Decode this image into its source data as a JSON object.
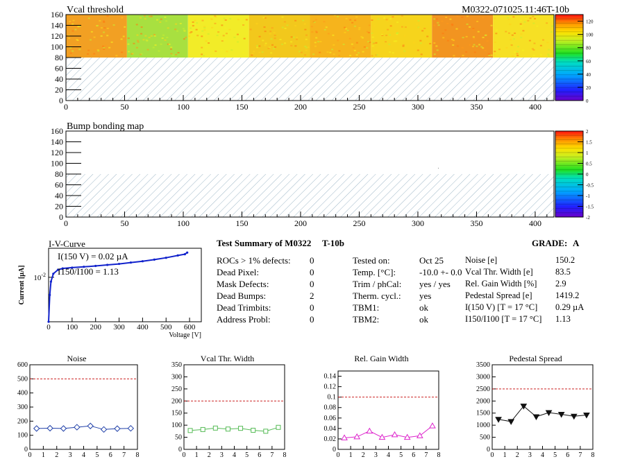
{
  "header": {
    "module_id": "M0322-071025.11:46T-10b"
  },
  "panels": {
    "vcal_map": {
      "title": "Vcal threshold"
    },
    "bump_map": {
      "title": "Bump bonding map"
    }
  },
  "summary": {
    "title": "Test Summary of M0322",
    "subtitle": "T-10b",
    "grade_label": "GRADE:",
    "grade_value": "A",
    "left": [
      {
        "label": "ROCs > 1% defects:",
        "value": "0"
      },
      {
        "label": "Dead Pixel:",
        "value": "0"
      },
      {
        "label": "Mask Defects:",
        "value": "0"
      },
      {
        "label": "Dead Bumps:",
        "value": "2"
      },
      {
        "label": "Dead Trimbits:",
        "value": "0"
      },
      {
        "label": "Address Probl:",
        "value": "0"
      }
    ],
    "middle": [
      {
        "label": "Tested on:",
        "value": "Oct 25"
      },
      {
        "label": "Temp. [°C]:",
        "value": "-10.0 +- 0.0"
      },
      {
        "label": "Trim / phCal:",
        "value": "yes / yes"
      },
      {
        "label": "Therm. cycl.:",
        "value": "yes"
      },
      {
        "label": "TBM1:",
        "value": "ok"
      },
      {
        "label": "TBM2:",
        "value": "ok"
      }
    ],
    "right": [
      {
        "label": "Noise [e]",
        "value": "150.2"
      },
      {
        "label": "Vcal Thr. Width [e]",
        "value": "83.5"
      },
      {
        "label": "Rel. Gain Width [%]",
        "value": "2.9"
      },
      {
        "label": "Pedestal Spread [e]",
        "value": "1419.2"
      },
      {
        "label": "I(150 V) [T = 17 °C]",
        "value": "0.29 µA"
      },
      {
        "label": "I150/I100 [T = 17 °C]",
        "value": "1.13"
      }
    ]
  },
  "iv": {
    "title": "I-V-Curve",
    "annotation1": "I(150 V) = 0.02 µA",
    "annotation2": "I150/I100 = 1.13"
  },
  "colors": {
    "iv_line": "#1122cc",
    "noise": "#1f3fa8",
    "vcal": "#55bb55",
    "gain": "#dd22cc",
    "pedestal": "#111111",
    "limit": "#cc2222",
    "hatch": "#9fb8c8"
  },
  "chart_data": [
    {
      "type": "heatmap",
      "title": "Vcal threshold",
      "xlim": [
        0,
        416
      ],
      "ylim": [
        0,
        160
      ],
      "x_ticks": [
        0,
        50,
        100,
        150,
        200,
        250,
        300,
        350,
        400
      ],
      "y_ticks": [
        0,
        20,
        40,
        60,
        80,
        100,
        120,
        140,
        160
      ],
      "filled_rows": [
        80,
        160
      ],
      "roc_mean_colors": [
        "#f2a023",
        "#a8e040",
        "#f2ec28",
        "#f2c81c",
        "#f6b41c",
        "#f6d41c",
        "#f29420",
        "#f6e024"
      ],
      "color_scale": {
        "range": [
          0,
          130
        ],
        "ticks": [
          0,
          20,
          40,
          60,
          80,
          100,
          120
        ]
      }
    },
    {
      "type": "heatmap",
      "title": "Bump bonding map",
      "xlim": [
        0,
        416
      ],
      "ylim": [
        0,
        160
      ],
      "x_ticks": [
        0,
        50,
        100,
        150,
        200,
        250,
        300,
        350,
        400
      ],
      "y_ticks": [
        0,
        20,
        40,
        60,
        80,
        100,
        120,
        140,
        160
      ],
      "color_scale": {
        "range": [
          -2,
          2
        ],
        "ticks": [
          -2,
          -1.5,
          -1,
          -0.5,
          0,
          0.5,
          1,
          1.5,
          2
        ]
      }
    },
    {
      "type": "line",
      "title": "I-V-Curve",
      "xlabel": "Voltage [V]",
      "ylabel": "Current [µA]",
      "xlim": [
        0,
        650
      ],
      "log_y": true,
      "x_ticks": [
        0,
        100,
        200,
        300,
        400,
        500,
        600
      ],
      "y_tick_label": "10^-2",
      "x": [
        0,
        5,
        10,
        20,
        40,
        60,
        100,
        150,
        200,
        250,
        300,
        350,
        400,
        450,
        500,
        550,
        580,
        590
      ],
      "y": [
        0.001,
        0.004,
        0.008,
        0.012,
        0.0148,
        0.0158,
        0.0165,
        0.0172,
        0.018,
        0.019,
        0.02,
        0.0215,
        0.023,
        0.025,
        0.0275,
        0.031,
        0.033,
        0.036
      ]
    },
    {
      "type": "line",
      "title": "Noise",
      "xlim": [
        0,
        8
      ],
      "ylim": [
        0,
        600
      ],
      "x_ticks": [
        0,
        1,
        2,
        3,
        4,
        5,
        6,
        7,
        8
      ],
      "y_ticks": [
        0,
        100,
        200,
        300,
        400,
        500,
        600
      ],
      "limit": 500,
      "x": [
        0.5,
        1.5,
        2.5,
        3.5,
        4.5,
        5.5,
        6.5,
        7.5
      ],
      "values": [
        148,
        150,
        148,
        157,
        166,
        141,
        147,
        149
      ]
    },
    {
      "type": "line",
      "title": "Vcal Thr. Width",
      "xlim": [
        0,
        8
      ],
      "ylim": [
        0,
        350
      ],
      "x_ticks": [
        0,
        1,
        2,
        3,
        4,
        5,
        6,
        7,
        8
      ],
      "y_ticks": [
        0,
        50,
        100,
        150,
        200,
        250,
        300,
        350
      ],
      "limit": 200,
      "x": [
        0.5,
        1.5,
        2.5,
        3.5,
        4.5,
        5.5,
        6.5,
        7.5
      ],
      "values": [
        78,
        82,
        88,
        84,
        87,
        79,
        75,
        91
      ]
    },
    {
      "type": "line",
      "title": "Rel. Gain Width",
      "xlim": [
        0,
        8
      ],
      "ylim": [
        0,
        0.15
      ],
      "x_ticks": [
        0,
        1,
        2,
        3,
        4,
        5,
        6,
        7,
        8
      ],
      "y_ticks": [
        0,
        0.02,
        0.04,
        0.06,
        0.08,
        0.1,
        0.12,
        0.14
      ],
      "limit": 0.1,
      "x": [
        0.5,
        1.5,
        2.5,
        3.5,
        4.5,
        5.5,
        6.5,
        7.5
      ],
      "values": [
        0.022,
        0.024,
        0.035,
        0.023,
        0.028,
        0.023,
        0.026,
        0.045
      ]
    },
    {
      "type": "line",
      "title": "Pedestal Spread",
      "xlim": [
        0,
        8
      ],
      "ylim": [
        0,
        3500
      ],
      "x_ticks": [
        0,
        1,
        2,
        3,
        4,
        5,
        6,
        7,
        8
      ],
      "y_ticks": [
        0,
        500,
        1000,
        1500,
        2000,
        2500,
        3000,
        3500
      ],
      "limit": 2500,
      "x": [
        0.5,
        1.5,
        2.5,
        3.5,
        4.5,
        5.5,
        6.5,
        7.5
      ],
      "values": [
        1240,
        1150,
        1790,
        1350,
        1520,
        1450,
        1370,
        1420
      ]
    }
  ]
}
